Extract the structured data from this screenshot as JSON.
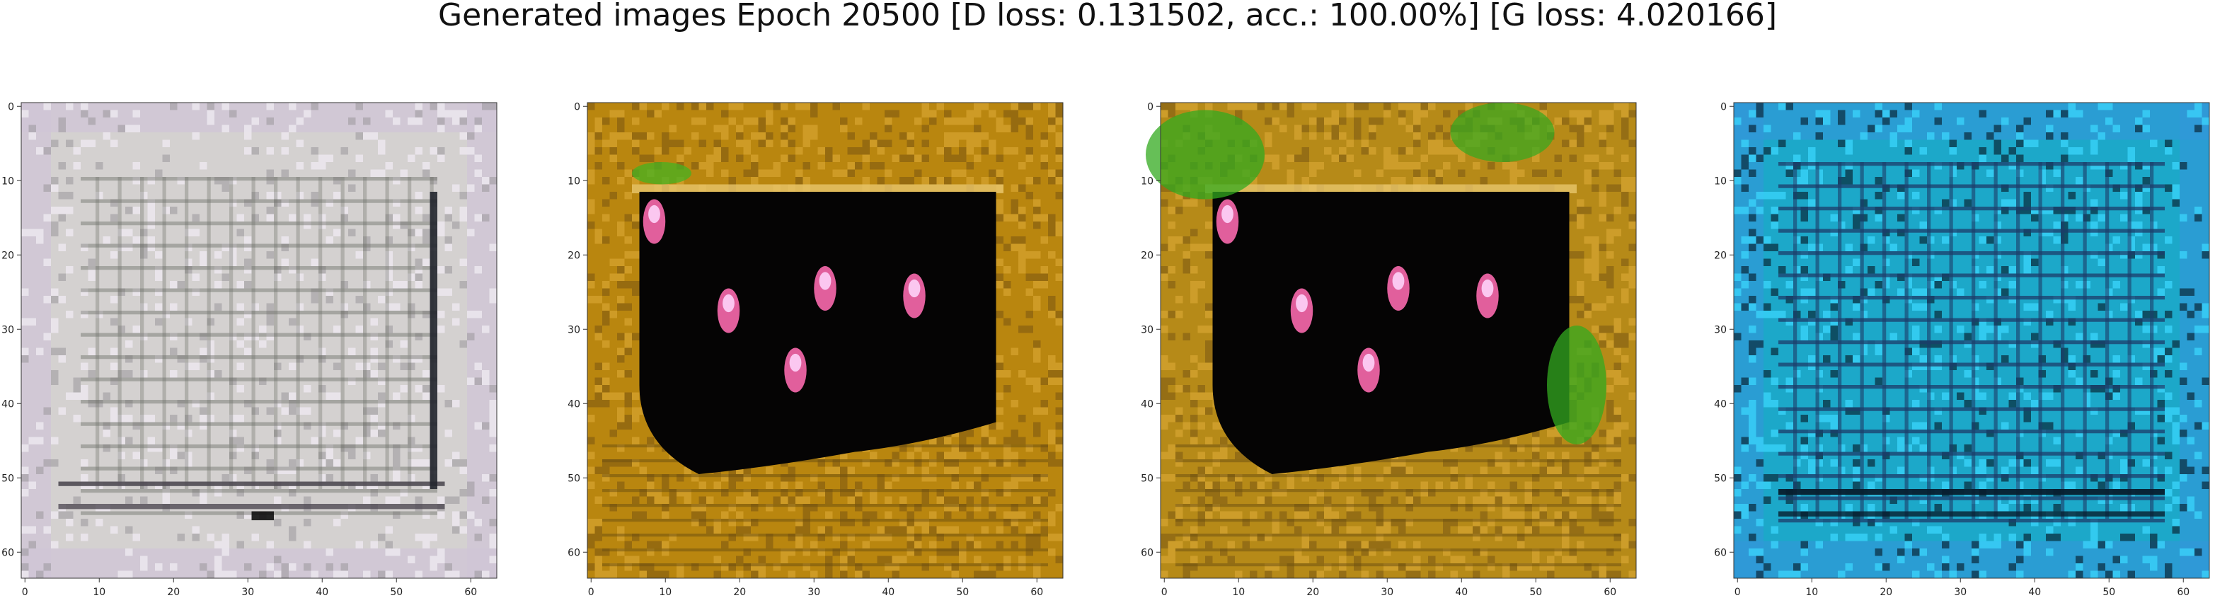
{
  "figure": {
    "title": "Generated images Epoch 20500 [D loss: 0.131502, acc.: 100.00%] [G loss: 4.020166]"
  },
  "colors": {
    "background": "#ffffff",
    "axis": "#333333"
  },
  "axes": {
    "x_range": [
      0,
      63
    ],
    "y_range": [
      0,
      63
    ],
    "x_ticks": [
      "0",
      "10",
      "20",
      "30",
      "40",
      "50",
      "60"
    ],
    "y_ticks": [
      "0",
      "10",
      "20",
      "30",
      "40",
      "50",
      "60"
    ]
  },
  "panels": [
    {
      "id": "panel-1",
      "theme": "pale-grey",
      "colors": {
        "base": "#d4d1d0",
        "border": "#cfc6d6",
        "grid": "#6c6f68",
        "accent": "#4f4a52",
        "highlight": "#ece8ee"
      }
    },
    {
      "id": "panel-2",
      "theme": "gold-frame",
      "colors": {
        "base": "#b9860f",
        "border": "#d7a11a",
        "dark": "#050404",
        "highlight": "#fa69ad",
        "stroke": "#7b5a10"
      }
    },
    {
      "id": "panel-3",
      "theme": "gold-green-frame",
      "colors": {
        "base": "#b68a18",
        "border": "#d5a32c",
        "dark": "#050404",
        "highlight": "#fa69ad",
        "green": "#33a91f"
      }
    },
    {
      "id": "panel-4",
      "theme": "blue-cyan",
      "colors": {
        "base": "#1ca8c9",
        "border": "#3297d8",
        "grid": "#1c3c69",
        "dark": "#071e2e",
        "highlight": "#3cd8ff"
      }
    }
  ]
}
